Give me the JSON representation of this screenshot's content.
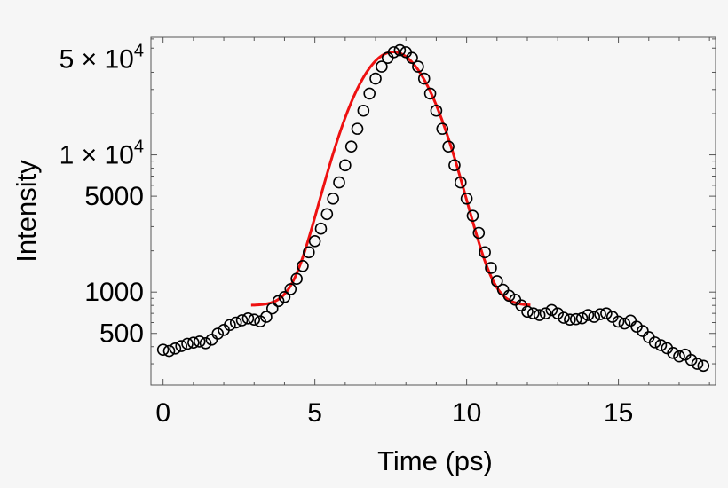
{
  "chart_data": {
    "type": "scatter",
    "title": "",
    "xlabel": "Time (ps)",
    "ylabel": "Intensity",
    "x_scale": "linear",
    "y_scale": "log",
    "xlim": [
      -0.4,
      18.2
    ],
    "ylim": [
      210,
      72000
    ],
    "x_ticks": [
      {
        "value": 0,
        "label": "0"
      },
      {
        "value": 5,
        "label": "5"
      },
      {
        "value": 10,
        "label": "10"
      },
      {
        "value": 15,
        "label": "15"
      }
    ],
    "y_ticks": [
      {
        "value": 500,
        "label": "500"
      },
      {
        "value": 1000,
        "label": "1000"
      },
      {
        "value": 5000,
        "label": "5000"
      },
      {
        "value": 10000,
        "label": "1 × 10",
        "exp": "4"
      },
      {
        "value": 50000,
        "label": "5 × 10",
        "exp": "4"
      }
    ],
    "grid": false,
    "series": [
      {
        "kind": "scatter",
        "marker": "open-circle",
        "color": "#000000",
        "x": [
          0.0,
          0.2,
          0.4,
          0.6,
          0.8,
          1.0,
          1.2,
          1.4,
          1.6,
          1.8,
          2.0,
          2.2,
          2.4,
          2.6,
          2.8,
          3.0,
          3.2,
          3.4,
          3.6,
          3.8,
          4.0,
          4.2,
          4.4,
          4.6,
          4.8,
          5.0,
          5.2,
          5.4,
          5.6,
          5.8,
          6.0,
          6.2,
          6.4,
          6.6,
          6.8,
          7.0,
          7.2,
          7.4,
          7.6,
          7.8,
          8.0,
          8.2,
          8.4,
          8.6,
          8.8,
          9.0,
          9.2,
          9.4,
          9.6,
          9.8,
          10.0,
          10.2,
          10.4,
          10.6,
          10.8,
          11.0,
          11.2,
          11.4,
          11.6,
          11.8,
          12.0,
          12.2,
          12.4,
          12.6,
          12.8,
          13.0,
          13.2,
          13.4,
          13.6,
          13.8,
          14.0,
          14.2,
          14.4,
          14.6,
          14.8,
          15.0,
          15.2,
          15.4,
          15.6,
          15.8,
          16.0,
          16.2,
          16.4,
          16.6,
          16.8,
          17.0,
          17.2,
          17.4,
          17.6,
          17.8
        ],
        "y": [
          380,
          372,
          388,
          404,
          420,
          428,
          436,
          424,
          450,
          498,
          530,
          576,
          600,
          623,
          643,
          630,
          612,
          660,
          760,
          860,
          920,
          1050,
          1250,
          1550,
          1950,
          2350,
          2900,
          3700,
          4800,
          6300,
          8400,
          11500,
          15500,
          21000,
          28000,
          36000,
          44000,
          51000,
          56000,
          58000,
          56000,
          51000,
          44000,
          36000,
          28000,
          21000,
          15500,
          11500,
          8400,
          6300,
          4800,
          3600,
          2700,
          1950,
          1500,
          1200,
          1040,
          940,
          880,
          800,
          720,
          700,
          680,
          700,
          740,
          700,
          650,
          630,
          635,
          645,
          680,
          660,
          690,
          700,
          660,
          610,
          590,
          620,
          560,
          520,
          470,
          430,
          410,
          390,
          360,
          340,
          350,
          320,
          300,
          290
        ]
      },
      {
        "kind": "line",
        "color": "#ee1111",
        "name": "",
        "gaussian_fit": {
          "baseline": 800,
          "amplitude": 55500,
          "center": 7.58,
          "sigma": 1.05,
          "x_range": [
            2.9,
            12.1
          ]
        }
      }
    ]
  }
}
